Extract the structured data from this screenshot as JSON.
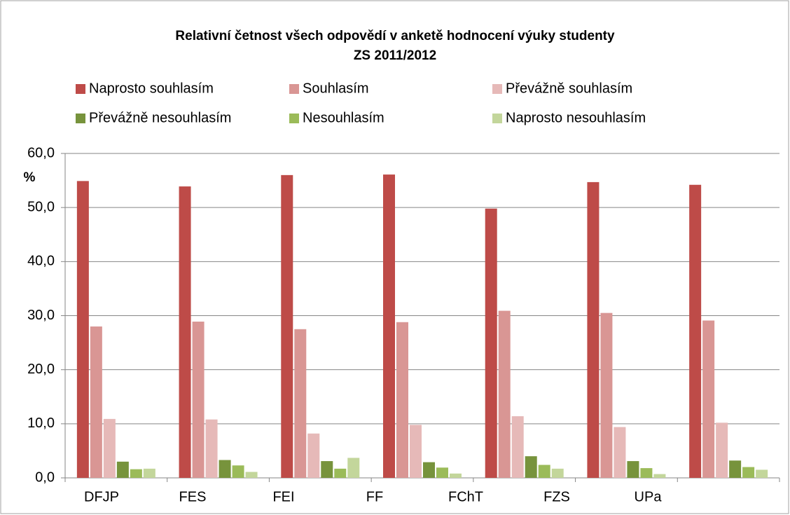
{
  "chart_data": {
    "type": "bar",
    "title": "Relativní četnost všech odpovědí v anketě hodnocení  výuky studenty",
    "subtitle": "ZS 2011/2012",
    "y_label": "%",
    "categories": [
      "DFJP",
      "FES",
      "FEI",
      "FF",
      "FChT",
      "FZS",
      "UPa"
    ],
    "series": [
      {
        "name": "Naprosto souhlasím",
        "color": "#be4b48",
        "values": [
          54.9,
          53.9,
          56.0,
          56.1,
          49.8,
          54.7,
          54.2
        ]
      },
      {
        "name": "Souhlasím",
        "color": "#d99694",
        "values": [
          28.0,
          28.9,
          27.5,
          28.8,
          30.9,
          30.5,
          29.1
        ]
      },
      {
        "name": "Převážně souhlasím",
        "color": "#e6b9b8",
        "values": [
          10.9,
          10.8,
          8.2,
          9.8,
          11.4,
          9.4,
          10.2
        ]
      },
      {
        "name": "Převážně nesouhlasím",
        "color": "#77933c",
        "values": [
          3.0,
          3.3,
          3.1,
          2.9,
          4.0,
          3.1,
          3.2
        ]
      },
      {
        "name": "Nesouhlasím",
        "color": "#9bbb59",
        "values": [
          1.6,
          2.3,
          1.7,
          1.9,
          2.4,
          1.8,
          2.0
        ]
      },
      {
        "name": "Naprosto nesouhlasím",
        "color": "#c3d69b",
        "values": [
          1.7,
          1.1,
          3.7,
          0.8,
          1.7,
          0.7,
          1.5
        ]
      }
    ],
    "ylim": [
      0,
      60
    ],
    "yticks": [
      {
        "value": 0,
        "label": "0,0"
      },
      {
        "value": 10,
        "label": "10,0"
      },
      {
        "value": 20,
        "label": "20,0"
      },
      {
        "value": 30,
        "label": "30,0"
      },
      {
        "value": 40,
        "label": "40,0"
      },
      {
        "value": 50,
        "label": "50,0"
      },
      {
        "value": 60,
        "label": "60,0"
      }
    ],
    "grid": true,
    "legend": "top"
  }
}
